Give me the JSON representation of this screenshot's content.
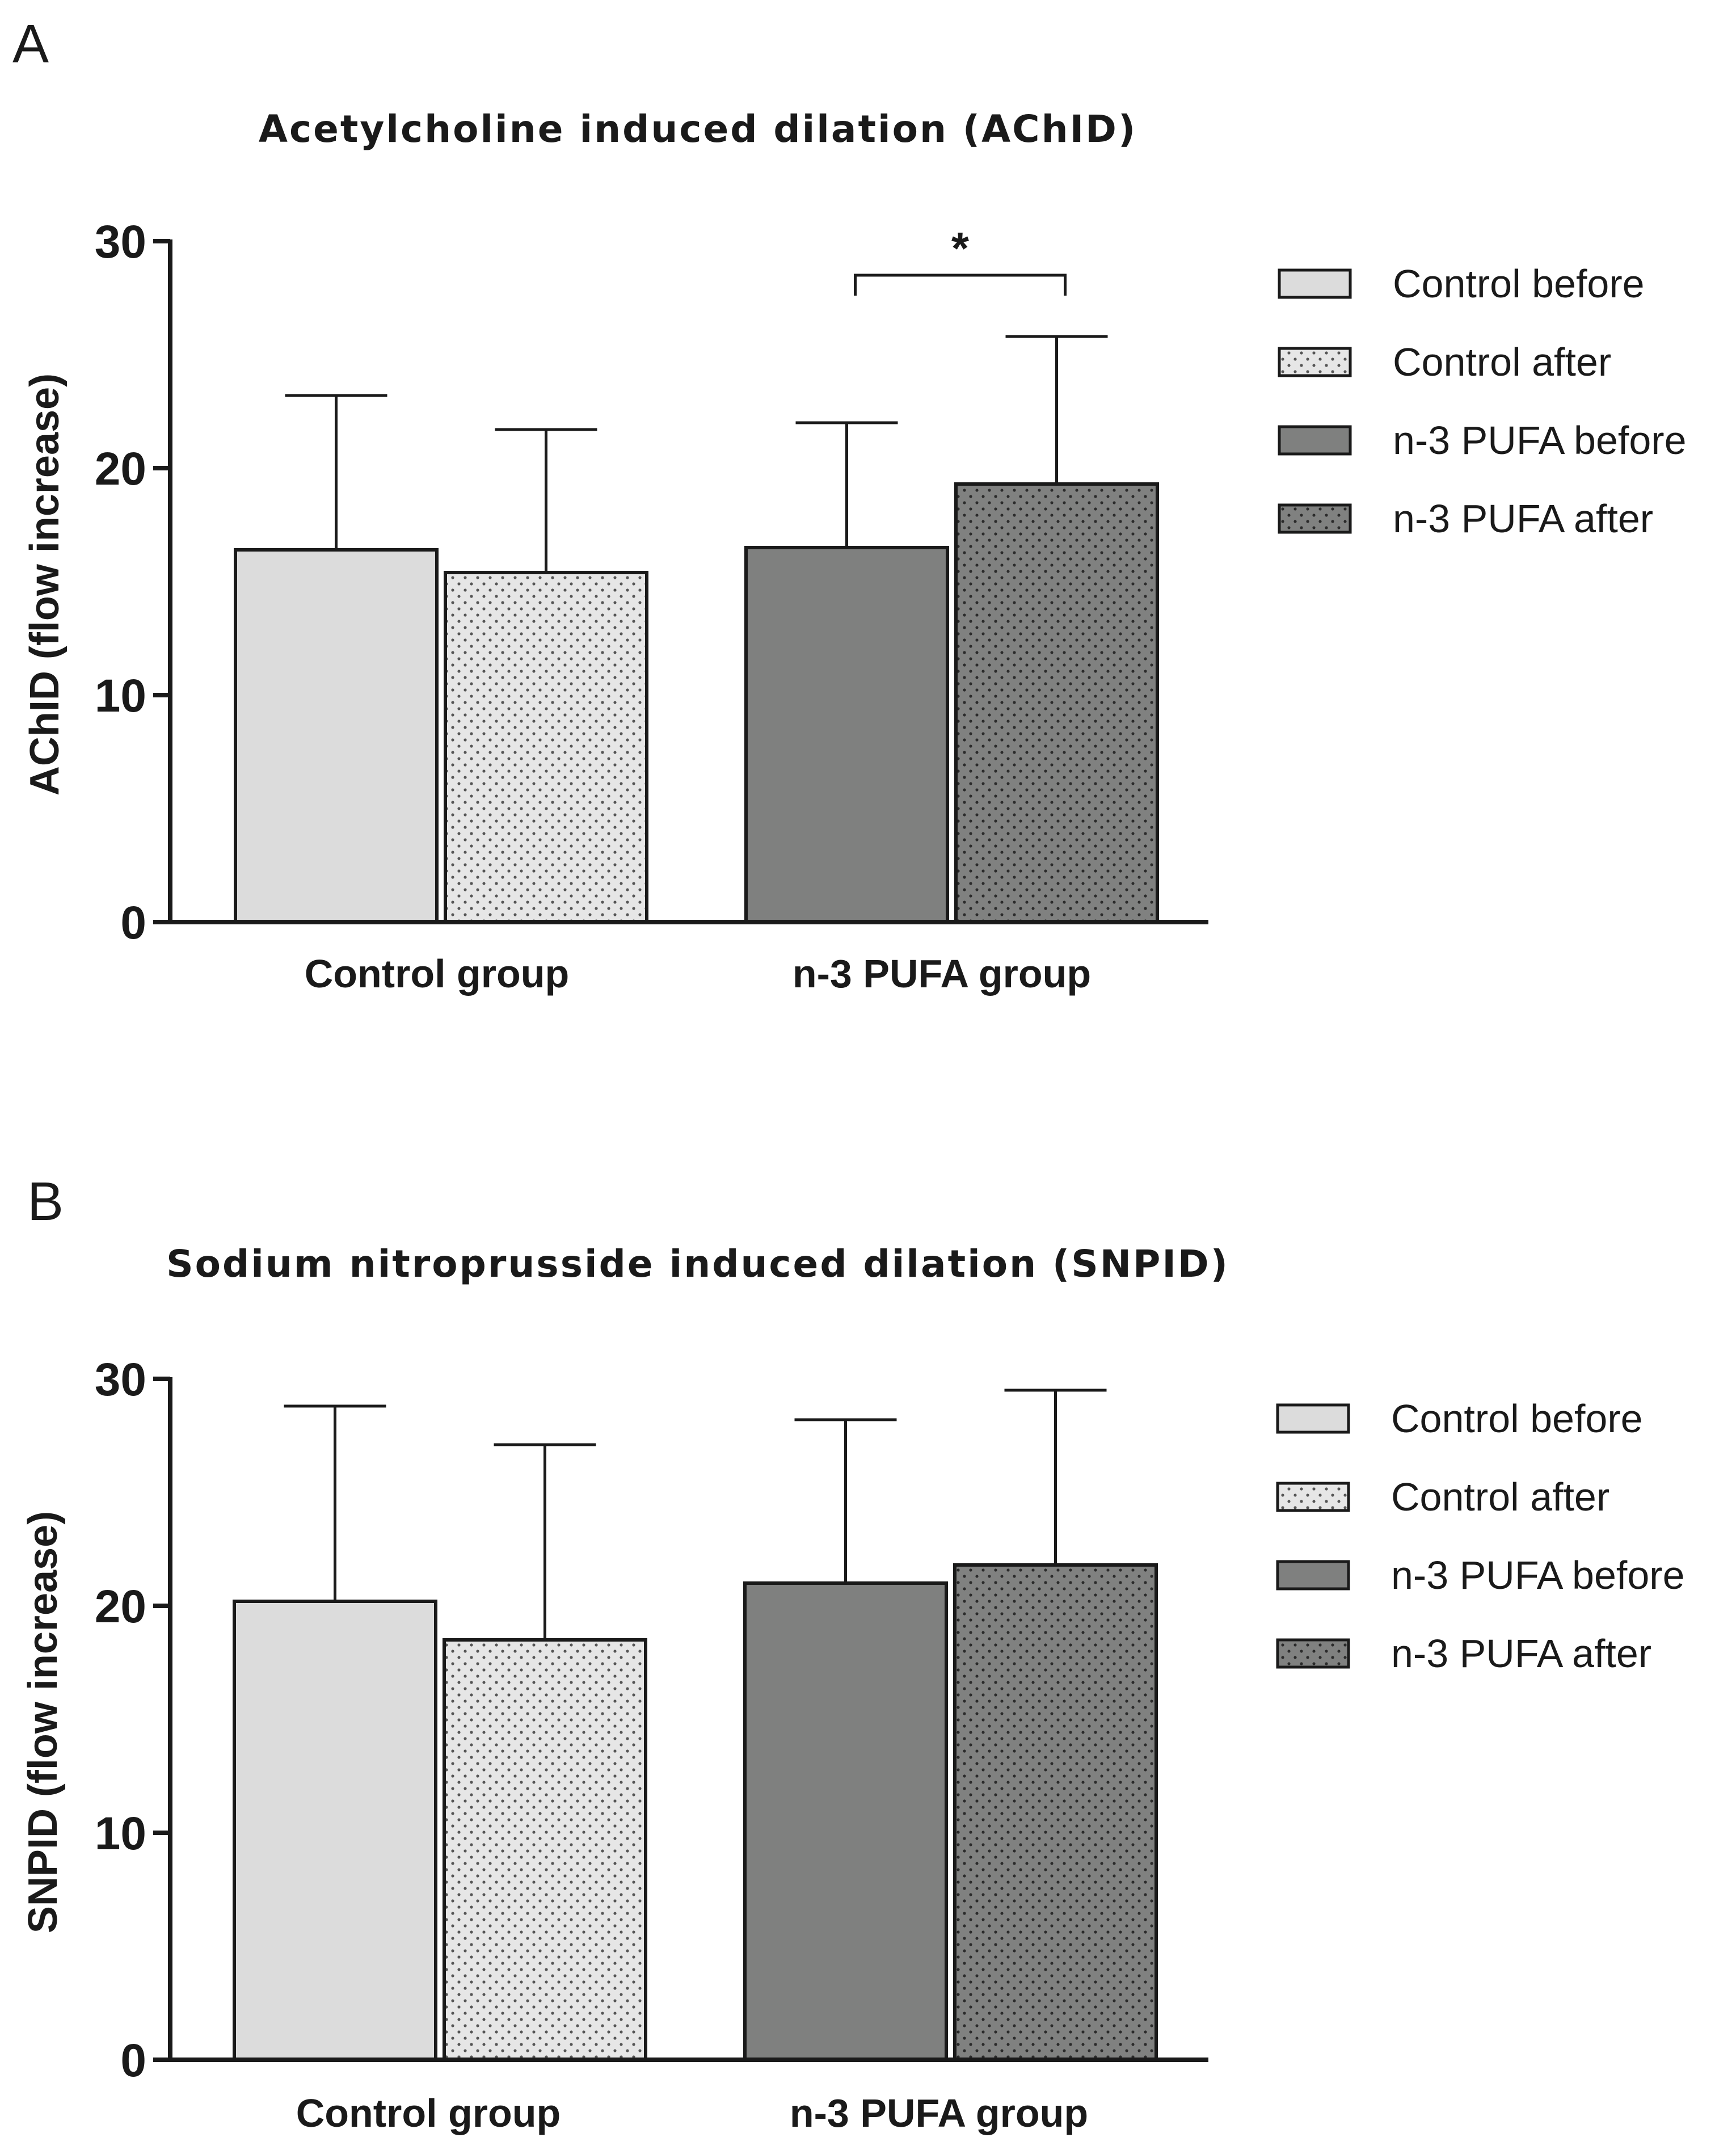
{
  "colors": {
    "control_before": "#dcdcdc",
    "control_after": "#e6e6e6",
    "pufa_before": "#7f807f",
    "pufa_after": "#808180",
    "axis": "#1a1a1a"
  },
  "chart_data": [
    {
      "type": "bar",
      "panel": "A",
      "title": "Acetylcholine induced dilation (AChID)",
      "xlabel": "",
      "ylabel": "AChID (flow increase)",
      "ylim": [
        0,
        30
      ],
      "yticks": [
        "0",
        "10",
        "20",
        "30"
      ],
      "categories": [
        "Control group",
        "n-3 PUFA group"
      ],
      "series": [
        {
          "name": "Control before",
          "values": [
            16.4,
            null
          ],
          "errors": [
            6.8,
            null
          ]
        },
        {
          "name": "Control after",
          "values": [
            15.4,
            null
          ],
          "errors": [
            6.3,
            null
          ]
        },
        {
          "name": "n-3 PUFA before",
          "values": [
            null,
            16.5
          ],
          "errors": [
            null,
            5.5
          ]
        },
        {
          "name": "n-3 PUFA after",
          "values": [
            null,
            19.3
          ],
          "errors": [
            null,
            6.5
          ]
        }
      ],
      "annotation": {
        "text": "*",
        "between": [
          "n-3 PUFA before",
          "n-3 PUFA after"
        ],
        "level": 28.5
      },
      "legend": "right",
      "grid": false
    },
    {
      "type": "bar",
      "panel": "B",
      "title": "Sodium nitroprusside induced dilation (SNPID)",
      "xlabel": "",
      "ylabel": "SNPID (flow increase)",
      "ylim": [
        0,
        30
      ],
      "yticks": [
        "0",
        "10",
        "20",
        "30"
      ],
      "categories": [
        "Control group",
        "n-3 PUFA group"
      ],
      "series": [
        {
          "name": "Control before",
          "values": [
            20.2,
            null
          ],
          "errors": [
            8.6,
            null
          ]
        },
        {
          "name": "Control after",
          "values": [
            18.5,
            null
          ],
          "errors": [
            8.6,
            null
          ]
        },
        {
          "name": "n-3 PUFA before",
          "values": [
            null,
            21.0
          ],
          "errors": [
            null,
            7.2
          ]
        },
        {
          "name": "n-3 PUFA after",
          "values": [
            null,
            21.8
          ],
          "errors": [
            null,
            7.7
          ]
        }
      ],
      "legend": "right",
      "grid": false
    }
  ]
}
